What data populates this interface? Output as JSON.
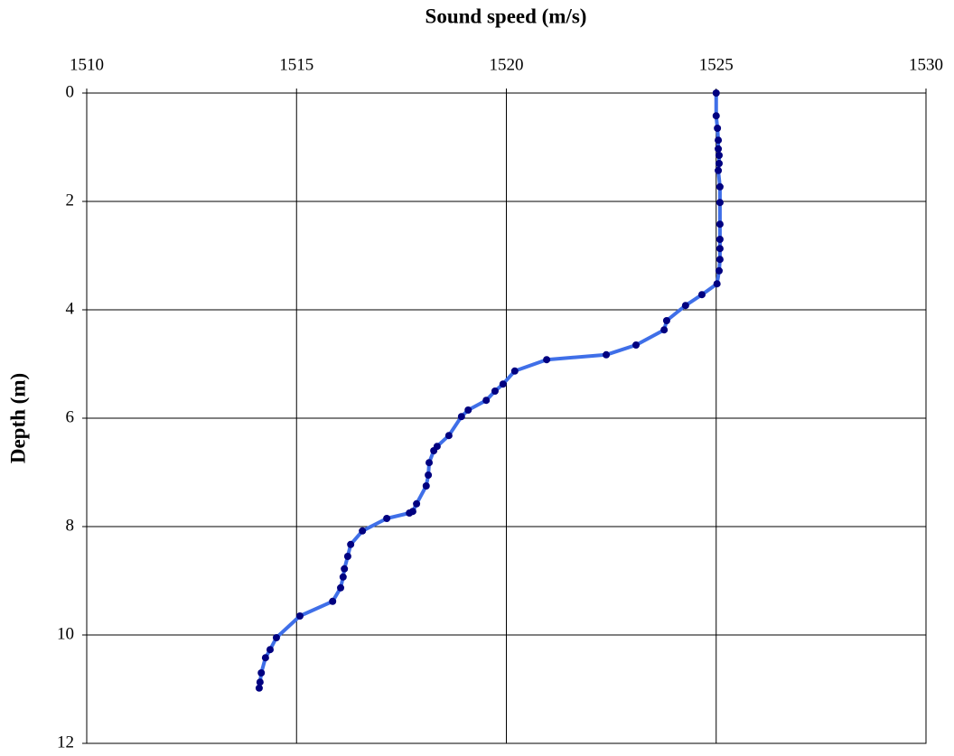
{
  "chart_data": {
    "type": "line",
    "xlabel": "Sound speed (m/s)",
    "ylabel": "Depth (m)",
    "xlim": [
      1510,
      1530
    ],
    "xticks": [
      1510,
      1515,
      1520,
      1525,
      1530
    ],
    "ylim": [
      0,
      12
    ],
    "yticks": [
      0,
      2,
      4,
      6,
      8,
      10,
      12
    ],
    "y_inverted": true,
    "x_axis_position": "top",
    "grid": true,
    "series": [
      {
        "color": "#3f6fe8",
        "marker_color": "#000080",
        "x": [
          1525.0,
          1525.0,
          1525.03,
          1525.05,
          1525.05,
          1525.07,
          1525.07,
          1525.05,
          1525.09,
          1525.09,
          1525.09,
          1525.09,
          1525.09,
          1525.09,
          1525.07,
          1525.02,
          1524.66,
          1524.27,
          1523.82,
          1523.76,
          1523.09,
          1522.38,
          1520.96,
          1520.2,
          1519.92,
          1519.73,
          1519.52,
          1519.09,
          1518.93,
          1518.63,
          1518.35,
          1518.27,
          1518.16,
          1518.14,
          1518.09,
          1517.86,
          1517.77,
          1517.69,
          1517.15,
          1516.57,
          1516.29,
          1516.22,
          1516.14,
          1516.11,
          1516.05,
          1515.86,
          1515.08,
          1514.52,
          1514.37,
          1514.26,
          1514.16,
          1514.13,
          1514.11
        ],
        "y": [
          0,
          0.42,
          0.65,
          0.87,
          1.03,
          1.15,
          1.3,
          1.43,
          1.73,
          2.02,
          2.42,
          2.7,
          2.87,
          3.07,
          3.28,
          3.52,
          3.72,
          3.92,
          4.2,
          4.37,
          4.65,
          4.83,
          4.92,
          5.13,
          5.37,
          5.5,
          5.67,
          5.85,
          5.97,
          6.32,
          6.52,
          6.6,
          6.82,
          7.05,
          7.25,
          7.58,
          7.72,
          7.75,
          7.85,
          8.08,
          8.33,
          8.55,
          8.78,
          8.93,
          9.13,
          9.38,
          9.65,
          10.05,
          10.27,
          10.42,
          10.7,
          10.87,
          10.98
        ]
      }
    ]
  }
}
